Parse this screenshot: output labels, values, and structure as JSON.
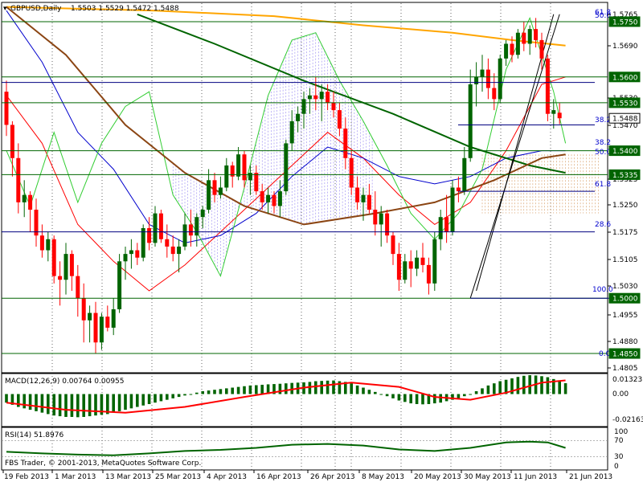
{
  "header": {
    "symbol_label": "GBPUSD,Daily",
    "ohlc_label": "1.5503 1.5529 1.5472 1.5488"
  },
  "colors": {
    "bull": "#006400",
    "bear": "#ff0000",
    "ma_orange": "#ffa500",
    "ma_darkgreen": "#006400",
    "ma_brown": "#8b4513",
    "band_blue": "#0000cd",
    "osc_green": "#32cd32",
    "fib": "#0000cd",
    "hline_green": "#006400",
    "hline_navy": "#000080",
    "badge_bg": "#006400",
    "badge_fg": "#ffffff",
    "macd_hist": "#006400",
    "macd_signal": "#ff0000",
    "rsi_line": "#006400",
    "grid": "#000000"
  },
  "main_axis": {
    "plain_ticks": [
      "1.5765",
      "1.5690",
      "1.5530",
      "1.5470",
      "1.5325",
      "1.5250",
      "1.5175",
      "1.5105",
      "1.5030",
      "1.4955",
      "1.4880",
      "1.4805"
    ],
    "badges": [
      {
        "value": "1.5750",
        "color": "#006400"
      },
      {
        "value": "1.5600",
        "color": "#006400"
      },
      {
        "value": "1.5530",
        "color": "#006400"
      },
      {
        "value": "1.5488",
        "color": "#ffffff"
      },
      {
        "value": "1.5400",
        "color": "#006400"
      },
      {
        "value": "1.5335",
        "color": "#006400"
      },
      {
        "value": "1.5000",
        "color": "#006400"
      },
      {
        "value": "1.4850",
        "color": "#006400"
      }
    ]
  },
  "fibonacci": {
    "levels": [
      "61.8",
      "50.0",
      "38.2",
      "38.2",
      "50.0",
      "61.8",
      "28.6",
      "100.0",
      "0.0"
    ]
  },
  "macd": {
    "label": "MACD(12,26,9) 0.00764 0.00955",
    "ticks": [
      "0.01323",
      "0.00",
      "-0.02163"
    ]
  },
  "rsi": {
    "label": "RSI(14) 51.8976",
    "ticks": [
      "100",
      "70",
      "30",
      "0"
    ]
  },
  "time_axis": {
    "labels": [
      "19 Feb 2013",
      "1 Mar 2013",
      "13 Mar 2013",
      "25 Mar 2013",
      "4 Apr 2013",
      "16 Apr 2013",
      "26 Apr 2013",
      "8 May 2013",
      "20 May 2013",
      "30 May 2013",
      "11 Jun 2013",
      "21 Jun 2013"
    ]
  },
  "copyright": "FBS Trader, © 2001-2013, MetaQuotes Software Corp.",
  "chart_data": {
    "type": "candlestick",
    "symbol": "GBPUSD",
    "timeframe": "Daily",
    "main_ylim": [
      1.48,
      1.58
    ],
    "candles": [
      [
        1.556,
        1.559,
        1.544,
        1.547
      ],
      [
        1.547,
        1.548,
        1.533,
        1.538
      ],
      [
        1.538,
        1.542,
        1.523,
        1.526
      ],
      [
        1.526,
        1.532,
        1.522,
        1.528
      ],
      [
        1.528,
        1.529,
        1.518,
        1.524
      ],
      [
        1.524,
        1.527,
        1.514,
        1.517
      ],
      [
        1.517,
        1.52,
        1.511,
        1.513
      ],
      [
        1.513,
        1.518,
        1.51,
        1.516
      ],
      [
        1.516,
        1.517,
        1.504,
        1.506
      ],
      [
        1.506,
        1.51,
        1.498,
        1.505
      ],
      [
        1.505,
        1.515,
        1.501,
        1.512
      ],
      [
        1.512,
        1.513,
        1.502,
        1.506
      ],
      [
        1.506,
        1.509,
        1.495,
        1.5
      ],
      [
        1.5,
        1.504,
        1.488,
        1.494
      ],
      [
        1.494,
        1.498,
        1.488,
        1.496
      ],
      [
        1.496,
        1.499,
        1.485,
        1.488
      ],
      [
        1.488,
        1.496,
        1.486,
        1.495
      ],
      [
        1.495,
        1.498,
        1.491,
        1.492
      ],
      [
        1.492,
        1.5,
        1.49,
        1.497
      ],
      [
        1.497,
        1.512,
        1.496,
        1.51
      ],
      [
        1.51,
        1.514,
        1.505,
        1.512
      ],
      [
        1.512,
        1.516,
        1.508,
        1.513
      ],
      [
        1.513,
        1.515,
        1.509,
        1.511
      ],
      [
        1.511,
        1.52,
        1.51,
        1.519
      ],
      [
        1.519,
        1.522,
        1.513,
        1.515
      ],
      [
        1.515,
        1.525,
        1.514,
        1.523
      ],
      [
        1.523,
        1.524,
        1.515,
        1.516
      ],
      [
        1.516,
        1.52,
        1.511,
        1.514
      ],
      [
        1.514,
        1.517,
        1.51,
        1.512
      ],
      [
        1.512,
        1.516,
        1.507,
        1.514
      ],
      [
        1.514,
        1.523,
        1.513,
        1.52
      ],
      [
        1.52,
        1.524,
        1.514,
        1.517
      ],
      [
        1.517,
        1.523,
        1.514,
        1.522
      ],
      [
        1.522,
        1.525,
        1.519,
        1.524
      ],
      [
        1.524,
        1.535,
        1.523,
        1.532
      ],
      [
        1.532,
        1.534,
        1.526,
        1.528
      ],
      [
        1.528,
        1.533,
        1.527,
        1.53
      ],
      [
        1.53,
        1.538,
        1.529,
        1.536
      ],
      [
        1.536,
        1.537,
        1.53,
        1.533
      ],
      [
        1.533,
        1.541,
        1.532,
        1.539
      ],
      [
        1.539,
        1.54,
        1.53,
        1.532
      ],
      [
        1.532,
        1.536,
        1.528,
        1.534
      ],
      [
        1.534,
        1.536,
        1.528,
        1.529
      ],
      [
        1.529,
        1.531,
        1.524,
        1.526
      ],
      [
        1.526,
        1.53,
        1.523,
        1.528
      ],
      [
        1.528,
        1.529,
        1.523,
        1.525
      ],
      [
        1.525,
        1.532,
        1.522,
        1.529
      ],
      [
        1.529,
        1.543,
        1.528,
        1.542
      ],
      [
        1.542,
        1.551,
        1.54,
        1.548
      ],
      [
        1.548,
        1.552,
        1.545,
        1.55
      ],
      [
        1.55,
        1.556,
        1.546,
        1.554
      ],
      [
        1.554,
        1.557,
        1.55,
        1.555
      ],
      [
        1.555,
        1.56,
        1.551,
        1.554
      ],
      [
        1.554,
        1.558,
        1.548,
        1.556
      ],
      [
        1.556,
        1.558,
        1.551,
        1.553
      ],
      [
        1.553,
        1.556,
        1.549,
        1.551
      ],
      [
        1.551,
        1.553,
        1.544,
        1.546
      ],
      [
        1.546,
        1.549,
        1.535,
        1.538
      ],
      [
        1.538,
        1.54,
        1.528,
        1.53
      ],
      [
        1.53,
        1.533,
        1.524,
        1.526
      ],
      [
        1.526,
        1.53,
        1.521,
        1.528
      ],
      [
        1.528,
        1.531,
        1.523,
        1.524
      ],
      [
        1.524,
        1.529,
        1.517,
        1.52
      ],
      [
        1.52,
        1.525,
        1.514,
        1.523
      ],
      [
        1.523,
        1.524,
        1.515,
        1.517
      ],
      [
        1.517,
        1.518,
        1.509,
        1.512
      ],
      [
        1.512,
        1.515,
        1.502,
        1.505
      ],
      [
        1.505,
        1.512,
        1.504,
        1.51
      ],
      [
        1.51,
        1.513,
        1.503,
        1.508
      ],
      [
        1.508,
        1.513,
        1.506,
        1.511
      ],
      [
        1.511,
        1.515,
        1.507,
        1.509
      ],
      [
        1.509,
        1.511,
        1.501,
        1.504
      ],
      [
        1.504,
        1.518,
        1.502,
        1.516
      ],
      [
        1.516,
        1.524,
        1.513,
        1.522
      ],
      [
        1.522,
        1.528,
        1.515,
        1.518
      ],
      [
        1.518,
        1.532,
        1.517,
        1.53
      ],
      [
        1.53,
        1.533,
        1.526,
        1.529
      ],
      [
        1.529,
        1.541,
        1.528,
        1.538
      ],
      [
        1.538,
        1.562,
        1.537,
        1.558
      ],
      [
        1.558,
        1.564,
        1.552,
        1.56
      ],
      [
        1.56,
        1.566,
        1.556,
        1.562
      ],
      [
        1.562,
        1.565,
        1.554,
        1.557
      ],
      [
        1.557,
        1.561,
        1.551,
        1.554
      ],
      [
        1.554,
        1.566,
        1.553,
        1.565
      ],
      [
        1.565,
        1.57,
        1.563,
        1.569
      ],
      [
        1.569,
        1.571,
        1.564,
        1.566
      ],
      [
        1.566,
        1.573,
        1.565,
        1.572
      ],
      [
        1.572,
        1.575,
        1.567,
        1.569
      ],
      [
        1.569,
        1.574,
        1.566,
        1.573
      ],
      [
        1.573,
        1.576,
        1.568,
        1.57
      ],
      [
        1.57,
        1.572,
        1.562,
        1.565
      ],
      [
        1.565,
        1.566,
        1.548,
        1.55
      ],
      [
        1.55,
        1.554,
        1.546,
        1.551
      ],
      [
        1.5503,
        1.5529,
        1.5472,
        1.5488
      ]
    ],
    "ma_orange": [
      [
        0,
        1.579
      ],
      [
        25,
        1.578
      ],
      [
        45,
        1.5765
      ],
      [
        60,
        1.574
      ],
      [
        75,
        1.572
      ],
      [
        85,
        1.57
      ],
      [
        94,
        1.5685
      ]
    ],
    "ma_darkgreen": [
      [
        22,
        1.577
      ],
      [
        35,
        1.569
      ],
      [
        50,
        1.559
      ],
      [
        65,
        1.55
      ],
      [
        78,
        1.541
      ],
      [
        88,
        1.536
      ],
      [
        94,
        1.534
      ]
    ],
    "ma_brown": [
      [
        0,
        1.579
      ],
      [
        10,
        1.566
      ],
      [
        20,
        1.547
      ],
      [
        30,
        1.534
      ],
      [
        40,
        1.525
      ],
      [
        50,
        1.52
      ],
      [
        62,
        1.523
      ],
      [
        72,
        1.526
      ],
      [
        82,
        1.532
      ],
      [
        90,
        1.538
      ],
      [
        94,
        1.539
      ]
    ],
    "band_blue": [
      [
        0,
        1.578
      ],
      [
        6,
        1.564
      ],
      [
        12,
        1.545
      ],
      [
        18,
        1.535
      ],
      [
        24,
        1.52
      ],
      [
        30,
        1.515
      ],
      [
        36,
        1.517
      ],
      [
        42,
        1.523
      ],
      [
        48,
        1.533
      ],
      [
        54,
        1.541
      ],
      [
        60,
        1.538
      ],
      [
        66,
        1.533
      ],
      [
        72,
        1.531
      ],
      [
        78,
        1.533
      ],
      [
        84,
        1.538
      ],
      [
        90,
        1.54
      ],
      [
        94,
        1.54
      ]
    ],
    "band_red": [
      [
        0,
        1.555
      ],
      [
        6,
        1.542
      ],
      [
        12,
        1.52
      ],
      [
        18,
        1.51
      ],
      [
        24,
        1.502
      ],
      [
        30,
        1.509
      ],
      [
        36,
        1.518
      ],
      [
        42,
        1.527
      ],
      [
        48,
        1.536
      ],
      [
        54,
        1.545
      ],
      [
        60,
        1.538
      ],
      [
        66,
        1.528
      ],
      [
        72,
        1.52
      ],
      [
        78,
        1.526
      ],
      [
        84,
        1.54
      ],
      [
        90,
        1.558
      ],
      [
        94,
        1.56
      ]
    ],
    "osc_green": [
      [
        0,
        1.54
      ],
      [
        4,
        1.525
      ],
      [
        8,
        1.545
      ],
      [
        12,
        1.526
      ],
      [
        16,
        1.542
      ],
      [
        20,
        1.552
      ],
      [
        24,
        1.556
      ],
      [
        28,
        1.528
      ],
      [
        32,
        1.518
      ],
      [
        36,
        1.506
      ],
      [
        40,
        1.53
      ],
      [
        44,
        1.555
      ],
      [
        48,
        1.57
      ],
      [
        52,
        1.572
      ],
      [
        56,
        1.559
      ],
      [
        60,
        1.548
      ],
      [
        64,
        1.536
      ],
      [
        68,
        1.523
      ],
      [
        72,
        1.516
      ],
      [
        76,
        1.523
      ],
      [
        80,
        1.535
      ],
      [
        84,
        1.562
      ],
      [
        88,
        1.576
      ],
      [
        92,
        1.556
      ],
      [
        94,
        1.542
      ]
    ],
    "trendlines": [
      {
        "from": [
          78,
          1.5
        ],
        "to": [
          93,
          1.577
        ]
      },
      {
        "from": [
          79,
          1.502
        ],
        "to": [
          92,
          1.577
        ]
      }
    ],
    "horizontal_levels": [
      1.575,
      1.56,
      1.553,
      1.54,
      1.5335,
      1.5,
      1.485
    ],
    "fib_levels_upper": {
      "61.8": 1.5795,
      "50.0": 1.578,
      "38.2": 1.56
    },
    "macd_hist": [
      -0.006,
      -0.0075,
      -0.009,
      -0.01,
      -0.011,
      -0.012,
      -0.013,
      -0.014,
      -0.015,
      -0.0155,
      -0.016,
      -0.016,
      -0.0162,
      -0.016,
      -0.0155,
      -0.015,
      -0.0145,
      -0.014,
      -0.013,
      -0.012,
      -0.011,
      -0.01,
      -0.009,
      -0.008,
      -0.007,
      -0.006,
      -0.005,
      -0.004,
      -0.003,
      -0.002,
      -0.001,
      0.0,
      0.001,
      0.002,
      0.0025,
      0.003,
      0.0035,
      0.004,
      0.0045,
      0.005,
      0.0055,
      0.006,
      0.0062,
      0.0065,
      0.0068,
      0.007,
      0.0072,
      0.0075,
      0.0078,
      0.008,
      0.0082,
      0.0085,
      0.009,
      0.0092,
      0.0094,
      0.0095,
      0.009,
      0.0085,
      0.0075,
      0.006,
      0.0045,
      0.003,
      0.0015,
      0.0,
      -0.0015,
      -0.003,
      -0.0045,
      -0.0055,
      -0.0065,
      -0.007,
      -0.0072,
      -0.007,
      -0.0065,
      -0.006,
      -0.005,
      -0.004,
      -0.003,
      -0.0015,
      0.0,
      0.002,
      0.004,
      0.006,
      0.0075,
      0.009,
      0.01,
      0.011,
      0.012,
      0.0128,
      0.0132,
      0.013,
      0.0125,
      0.0118,
      0.0105,
      0.009,
      0.0076
    ],
    "macd_signal": [
      [
        0,
        -0.006
      ],
      [
        10,
        -0.011
      ],
      [
        20,
        -0.013
      ],
      [
        30,
        -0.009
      ],
      [
        40,
        -0.002
      ],
      [
        50,
        0.0045
      ],
      [
        58,
        0.008
      ],
      [
        66,
        0.005
      ],
      [
        72,
        -0.002
      ],
      [
        78,
        -0.004
      ],
      [
        84,
        0.001
      ],
      [
        90,
        0.008
      ],
      [
        94,
        0.0096
      ]
    ],
    "rsi": [
      [
        0,
        42
      ],
      [
        6,
        38
      ],
      [
        12,
        35
      ],
      [
        18,
        33
      ],
      [
        24,
        38
      ],
      [
        30,
        44
      ],
      [
        36,
        47
      ],
      [
        42,
        52
      ],
      [
        48,
        60
      ],
      [
        54,
        62
      ],
      [
        60,
        58
      ],
      [
        66,
        48
      ],
      [
        72,
        44
      ],
      [
        78,
        52
      ],
      [
        84,
        66
      ],
      [
        88,
        68
      ],
      [
        91,
        66
      ],
      [
        94,
        52
      ]
    ],
    "macd_ylim": [
      -0.02163,
      0.01323
    ],
    "rsi_ylim": [
      0,
      100
    ]
  }
}
